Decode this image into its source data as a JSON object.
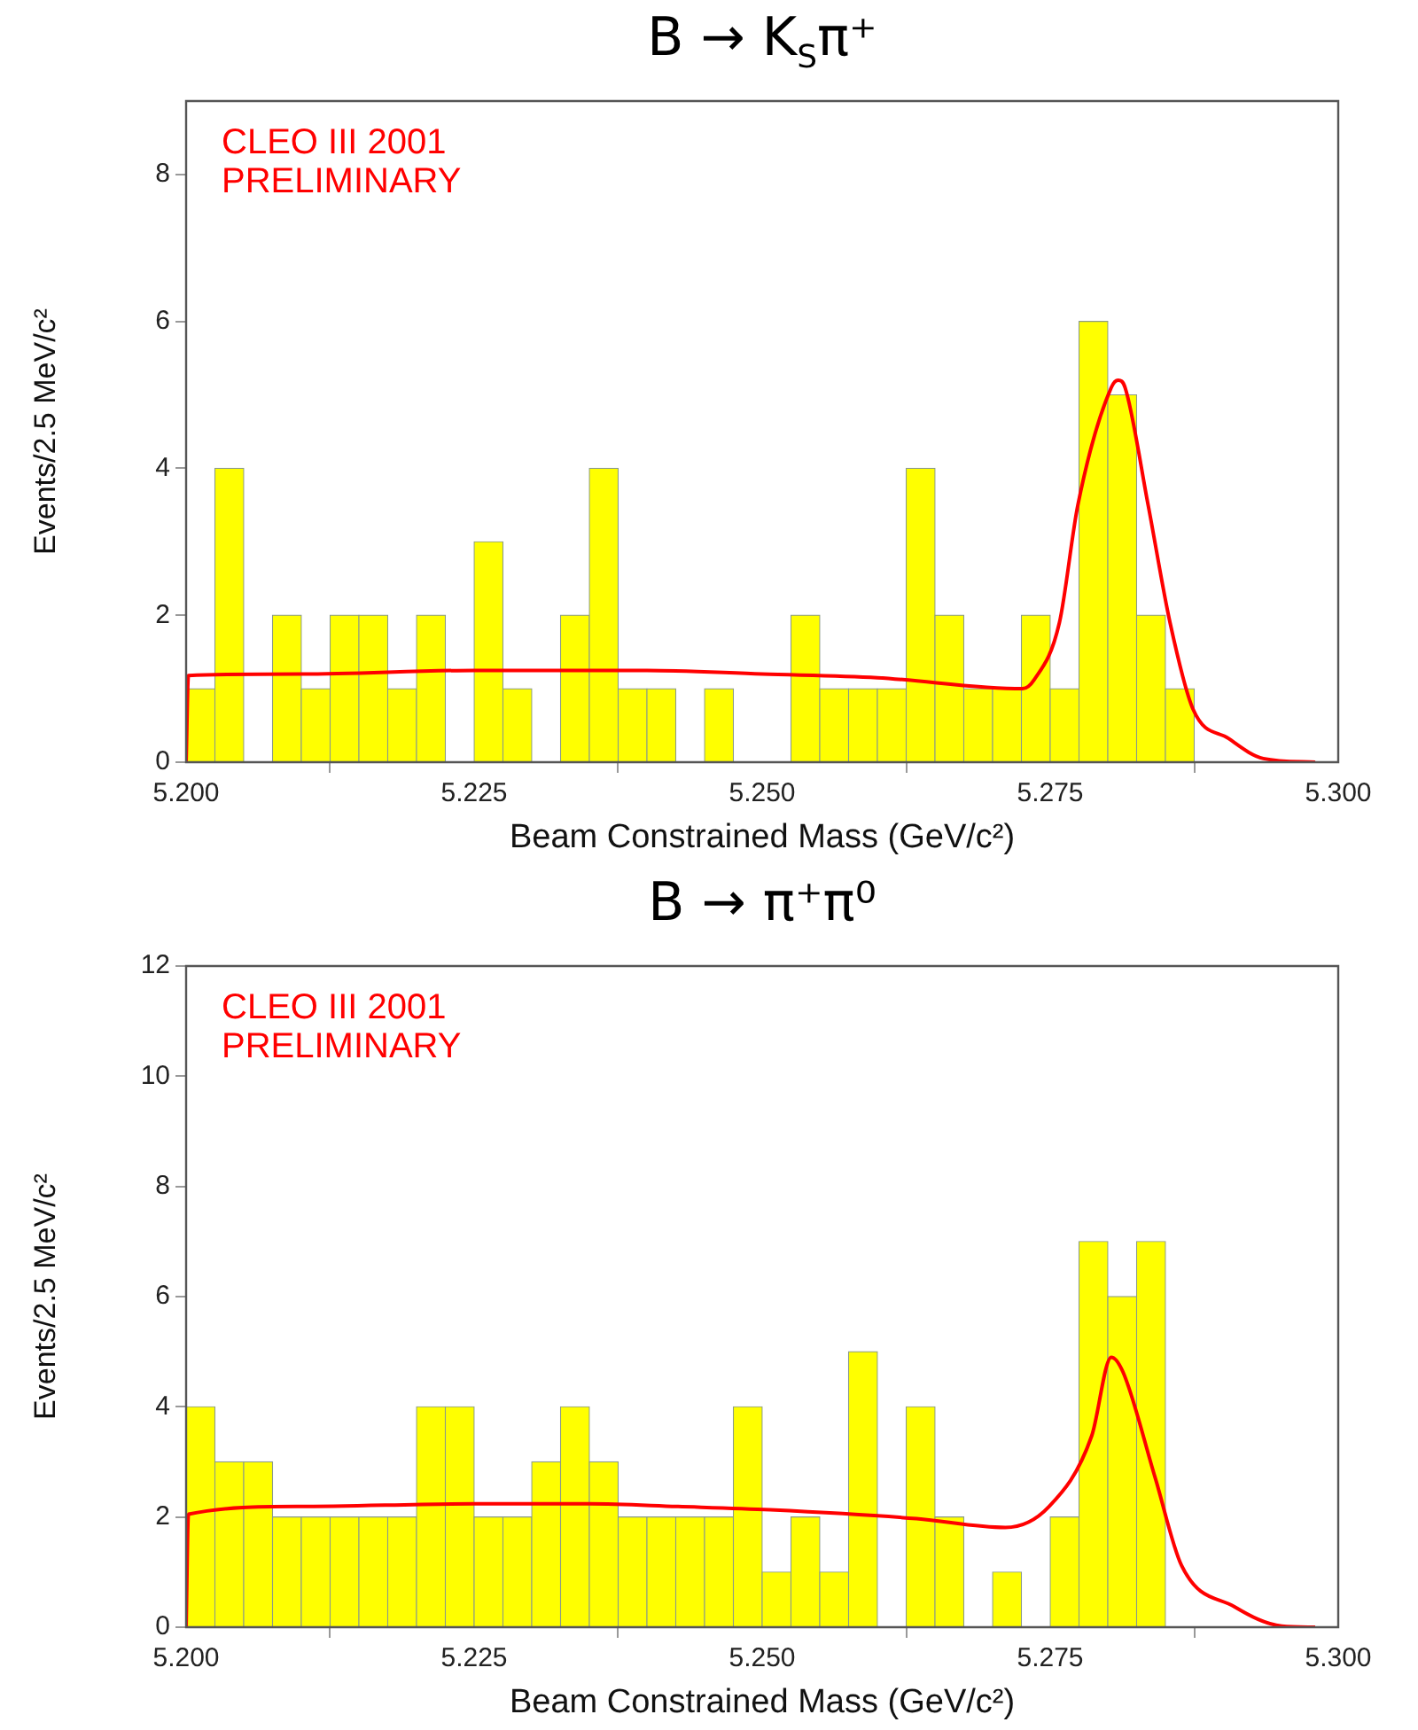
{
  "chart_data": [
    {
      "type": "histogram",
      "title": "B → K$_{S}$π⁺",
      "xlabel": "Beam Constrained Mass (GeV/c²)",
      "ylabel": "Events/2.5 MeV/c²",
      "annotations": [
        "CLEO III 2001",
        "PRELIMINARY"
      ],
      "bins": [
        5.2,
        5.2025,
        5.205,
        5.2075,
        5.21,
        5.2125,
        5.215,
        5.2175,
        5.22,
        5.2225,
        5.225,
        5.2275,
        5.23,
        5.2325,
        5.235,
        5.2375,
        5.24,
        5.2425,
        5.245,
        5.2475,
        5.25,
        5.2525,
        5.255,
        5.2575,
        5.26,
        5.2625,
        5.265,
        5.2675,
        5.27,
        5.2725,
        5.275,
        5.2775,
        5.28,
        5.2825,
        5.285,
        5.2875,
        5.29,
        5.2925,
        5.295,
        5.2975,
        5.3
      ],
      "series": [
        {
          "color": "#ffff00",
          "values": [
            1,
            4,
            0,
            2,
            1,
            2,
            2,
            1,
            2,
            0,
            3,
            1,
            0,
            2,
            4,
            1,
            1,
            0,
            1,
            0,
            0,
            2,
            1,
            1,
            1,
            4,
            2,
            1,
            1,
            2,
            1,
            6,
            5,
            2,
            1,
            0,
            0,
            0,
            0,
            0
          ]
        },
        {
          "type": "line",
          "color": "#ff0000",
          "x": [
            5.2,
            5.2002,
            5.21,
            5.225,
            5.24,
            5.25,
            5.26,
            5.2726,
            5.2736,
            5.2758,
            5.2774,
            5.2803,
            5.2809,
            5.2815,
            5.2835,
            5.2854,
            5.2874,
            5.2905,
            5.2935,
            5.298
          ],
          "values": [
            0,
            1.18,
            1.2,
            1.25,
            1.25,
            1.2,
            1.15,
            1.0,
            1.12,
            1.9,
            3.5,
            5.1,
            5.2,
            5.1,
            3.5,
            1.9,
            0.72,
            0.32,
            0.05,
            0
          ]
        }
      ],
      "xlim": [
        5.2,
        5.3
      ],
      "xticks": [
        {
          "value": 5.2,
          "label": "5.200"
        },
        {
          "value": 5.225,
          "label": "5.225"
        },
        {
          "value": 5.25,
          "label": "5.250"
        },
        {
          "value": 5.275,
          "label": "5.275"
        },
        {
          "value": 5.3,
          "label": "5.300"
        }
      ],
      "ylim": [
        0,
        9
      ],
      "yticks": [
        0,
        2,
        4,
        6,
        8
      ],
      "grid": false,
      "legend": false
    },
    {
      "type": "histogram",
      "title": "B → π⁺π⁰",
      "xlabel": "Beam Constrained Mass (GeV/c²)",
      "ylabel": "Events/2.5 MeV/c²",
      "annotations": [
        "CLEO III 2001",
        "PRELIMINARY"
      ],
      "bins": [
        5.2,
        5.2025,
        5.205,
        5.2075,
        5.21,
        5.2125,
        5.215,
        5.2175,
        5.22,
        5.2225,
        5.225,
        5.2275,
        5.23,
        5.2325,
        5.235,
        5.2375,
        5.24,
        5.2425,
        5.245,
        5.2475,
        5.25,
        5.2525,
        5.255,
        5.2575,
        5.26,
        5.2625,
        5.265,
        5.2675,
        5.27,
        5.2725,
        5.275,
        5.2775,
        5.28,
        5.2825,
        5.285,
        5.2875,
        5.29,
        5.2925,
        5.295,
        5.2975,
        5.3
      ],
      "series": [
        {
          "color": "#ffff00",
          "values": [
            4,
            3,
            3,
            2,
            2,
            2,
            2,
            2,
            4,
            4,
            2,
            2,
            3,
            4,
            3,
            2,
            2,
            2,
            2,
            4,
            1,
            2,
            1,
            5,
            0,
            4,
            2,
            0,
            1,
            0,
            2,
            7,
            6,
            7,
            0,
            0,
            0,
            0,
            0,
            0
          ]
        },
        {
          "type": "line",
          "color": "#ff0000",
          "x": [
            5.2,
            5.2002,
            5.2096,
            5.225,
            5.235,
            5.2427,
            5.2507,
            5.2634,
            5.2711,
            5.2749,
            5.2786,
            5.2803,
            5.2813,
            5.2841,
            5.2864,
            5.291,
            5.2951,
            5.298
          ],
          "values": [
            0,
            2.05,
            2.19,
            2.24,
            2.24,
            2.19,
            2.13,
            1.97,
            1.81,
            2.19,
            3.47,
            4.9,
            4.64,
            2.72,
            1.12,
            0.37,
            0.02,
            0
          ]
        }
      ],
      "xlim": [
        5.2,
        5.3
      ],
      "xticks": [
        {
          "value": 5.2,
          "label": "5.200"
        },
        {
          "value": 5.225,
          "label": "5.225"
        },
        {
          "value": 5.25,
          "label": "5.250"
        },
        {
          "value": 5.275,
          "label": "5.275"
        },
        {
          "value": 5.3,
          "label": "5.300"
        }
      ],
      "ylim": [
        0,
        12
      ],
      "yticks": [
        0,
        2,
        4,
        6,
        8,
        10,
        12
      ],
      "grid": false,
      "legend": false
    }
  ]
}
